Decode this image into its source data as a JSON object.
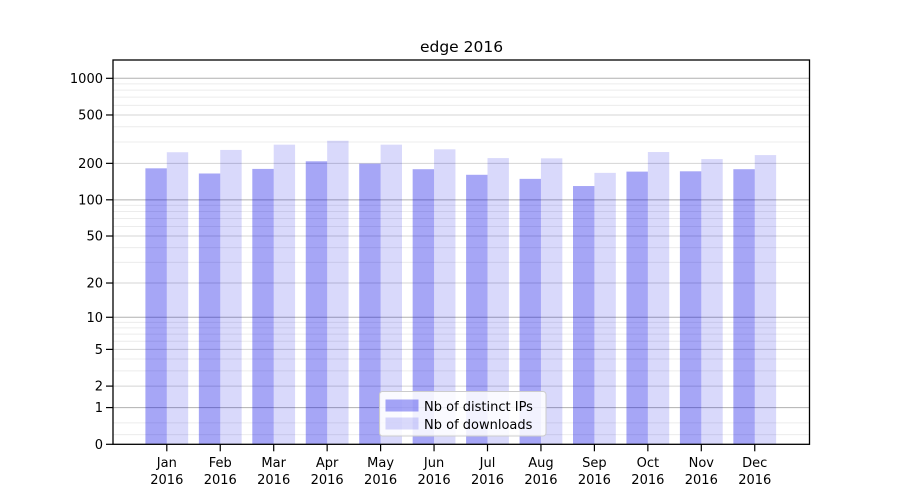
{
  "chart_data": {
    "type": "bar",
    "title": "edge 2016",
    "categories": [
      "Jan",
      "Feb",
      "Mar",
      "Apr",
      "May",
      "Jun",
      "Jul",
      "Aug",
      "Sep",
      "Oct",
      "Nov",
      "Dec"
    ],
    "category_year": "2016",
    "series": [
      {
        "name": "Nb of distinct IPs",
        "color": "#0000e6",
        "opacity": 0.35,
        "values": [
          182,
          165,
          180,
          208,
          199,
          179,
          161,
          149,
          130,
          171,
          172,
          179
        ]
      },
      {
        "name": "Nb of downloads",
        "color": "#0000e6",
        "opacity": 0.15,
        "values": [
          247,
          258,
          285,
          307,
          285,
          261,
          221,
          220,
          167,
          248,
          217,
          234
        ]
      }
    ],
    "xlabel": "",
    "ylabel": "",
    "yscale": "log1p",
    "ylim": [
      0,
      1490
    ],
    "yticks": [
      1000,
      500,
      200,
      100,
      50,
      20,
      10,
      5,
      2,
      1,
      0
    ],
    "minor_yticks": [
      0.2,
      0.5,
      3,
      4,
      6,
      7,
      8,
      9,
      30,
      40,
      60,
      70,
      80,
      90,
      300,
      400,
      600,
      700,
      800,
      900
    ],
    "grid": "on",
    "legend_position": "lower-center-inside",
    "grid_major_strong_color": "#b0b0b0",
    "grid_major_color": "#d4d4d4",
    "grid_minor_color": "#ececec",
    "axis_color": "#000000",
    "legend_border_color": "#cccccc",
    "legend_background": "rgba(255,255,255,0.85)"
  }
}
